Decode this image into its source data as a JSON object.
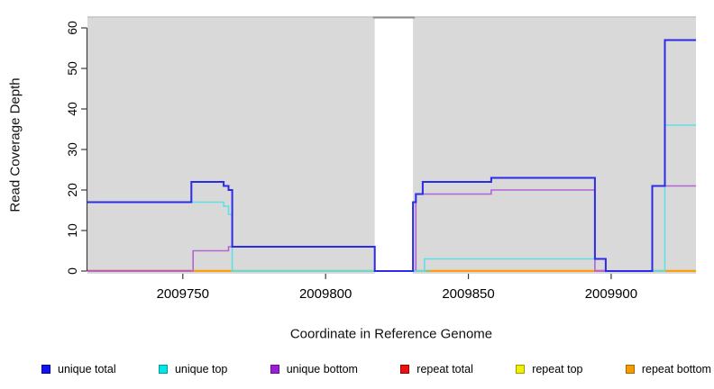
{
  "chart_data": {
    "type": "line",
    "subtype": "step",
    "title": "",
    "xlabel": "Coordinate in Reference Genome",
    "ylabel": "Read Coverage Depth",
    "xlim": [
      2009716.6,
      2009929.7
    ],
    "ylim": [
      0,
      60
    ],
    "grid": false,
    "panel_background": "#d9d9d9",
    "panel_top_edge_color": "#c6c6c6",
    "gap_border_color": "#8f8f8f",
    "axis_color": "#3c3c3c",
    "xticks": [
      {
        "value": 2009750,
        "label": "2009750"
      },
      {
        "value": 2009800,
        "label": "2009800"
      },
      {
        "value": 2009850,
        "label": "2009850"
      },
      {
        "value": 2009900,
        "label": "2009900"
      }
    ],
    "yticks": [
      {
        "value": 0,
        "label": "0"
      },
      {
        "value": 10,
        "label": "10"
      },
      {
        "value": 20,
        "label": "20"
      },
      {
        "value": 30,
        "label": "30"
      },
      {
        "value": 40,
        "label": "40"
      },
      {
        "value": 50,
        "label": "50"
      },
      {
        "value": 60,
        "label": "60"
      }
    ],
    "no_data_gap": {
      "from": 2009817.2,
      "to": 2009830.6
    },
    "series": [
      {
        "name": "repeat total",
        "layer": "back",
        "color": "#cb4563",
        "width": 2,
        "points": [
          [
            2009716.6,
            0
          ]
        ]
      },
      {
        "name": "repeat top",
        "layer": "back",
        "color": "#f0f000",
        "width": 2,
        "points": [
          [
            2009716.6,
            0
          ]
        ]
      },
      {
        "name": "repeat bottom",
        "layer": "back",
        "color": "#ff9d0b",
        "width": 2,
        "points": [
          [
            2009716.6,
            0
          ]
        ]
      },
      {
        "name": "unique bottom",
        "layer": "front",
        "color": "#b165d5",
        "width": 1.6,
        "points": [
          [
            2009716.6,
            0
          ],
          [
            2009753.6,
            5
          ],
          [
            2009766,
            6
          ],
          [
            2009817.2,
            0
          ],
          [
            2009831.6,
            19
          ],
          [
            2009858,
            20
          ],
          [
            2009894.3,
            0
          ],
          [
            2009914.4,
            21
          ]
        ]
      },
      {
        "name": "unique top",
        "layer": "front",
        "color": "#5fdfe6",
        "width": 1.6,
        "points": [
          [
            2009716.6,
            17
          ],
          [
            2009764.3,
            16
          ],
          [
            2009766,
            14
          ],
          [
            2009767.3,
            0
          ],
          [
            2009834.6,
            3
          ],
          [
            2009898.1,
            0
          ],
          [
            2009918.8,
            36
          ]
        ]
      },
      {
        "name": "unique total",
        "layer": "front",
        "color": "#2b2be8",
        "width": 2,
        "points": [
          [
            2009716.6,
            17
          ],
          [
            2009753,
            22
          ],
          [
            2009764.3,
            21
          ],
          [
            2009766,
            20
          ],
          [
            2009767.3,
            6
          ],
          [
            2009817.2,
            0
          ],
          [
            2009830.6,
            17
          ],
          [
            2009831.6,
            19
          ],
          [
            2009834,
            22
          ],
          [
            2009858,
            23
          ],
          [
            2009894.3,
            3
          ],
          [
            2009898.1,
            0
          ],
          [
            2009914.4,
            21
          ],
          [
            2009918.8,
            57
          ]
        ]
      }
    ],
    "baseline_segments": [
      {
        "from": 2009716.6,
        "to": 2009753,
        "color": "#cb4563"
      },
      {
        "from": 2009753,
        "to": 2009767.3,
        "color": "#ff9d0b"
      },
      {
        "from": 2009767.3,
        "to": 2009817.2,
        "color": "#8ac48a"
      },
      {
        "from": 2009830.6,
        "to": 2009836.8,
        "color": "#8ac48a"
      },
      {
        "from": 2009836.8,
        "to": 2009894.3,
        "color": "#ff9d0b"
      },
      {
        "from": 2009894.3,
        "to": 2009898.1,
        "color": "#c35fc3"
      },
      {
        "from": 2009914.4,
        "to": 2009918.8,
        "color": "#8ac48a"
      },
      {
        "from": 2009918.8,
        "to": 2009929.7,
        "color": "#ff9d0b"
      }
    ],
    "legend": {
      "position": "bottom",
      "items": [
        {
          "label": "unique total",
          "fill": "#1414ee",
          "border": "#00009b"
        },
        {
          "label": "unique top",
          "fill": "#00e6e6",
          "border": "#009e9e"
        },
        {
          "label": "unique bottom",
          "fill": "#9a1fd6",
          "border": "#6a0d98"
        },
        {
          "label": "repeat total",
          "fill": "#ee1111",
          "border": "#9b0000"
        },
        {
          "label": "repeat top",
          "fill": "#f0f000",
          "border": "#9e9e00"
        },
        {
          "label": "repeat bottom",
          "fill": "#f59b00",
          "border": "#a86a00"
        }
      ]
    }
  }
}
